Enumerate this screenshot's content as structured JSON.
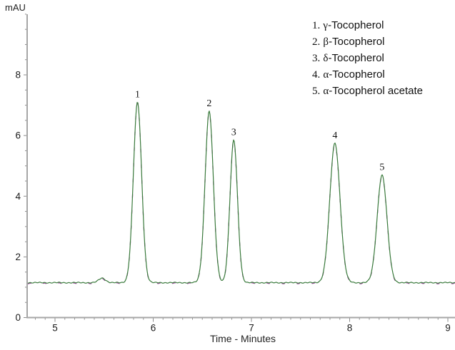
{
  "chart_data": {
    "type": "line",
    "title": "",
    "xlabel": "Time - Minutes",
    "ylabel": "mAU",
    "xlim": [
      4.72,
      9.07
    ],
    "ylim": [
      0,
      10
    ],
    "x_ticks": [
      5,
      6,
      7,
      8,
      9
    ],
    "y_ticks": [
      0,
      2,
      4,
      6,
      8
    ],
    "x_minor_tick_step": 0.1,
    "y_minor_tick_step": 0.5,
    "grid": false,
    "legend_position": "top-right",
    "baseline_mAU": 1.15,
    "noise_amplitude_mAU": 0.018,
    "trace_colors": {
      "primary_green": "#3a7a3c",
      "secondary_magenta": "#a352a3"
    },
    "axis_color": "#a6a6a6",
    "tick_color": "#8c8c8c",
    "text_color": "#1a1a1a",
    "peaks": [
      {
        "id": "1",
        "name": "γ-Tocopherol",
        "rt_min": 5.84,
        "apex_mAU": 7.1,
        "sigma_min": 0.042
      },
      {
        "id": "2",
        "name": "β-Tocopherol",
        "rt_min": 6.57,
        "apex_mAU": 6.8,
        "sigma_min": 0.042
      },
      {
        "id": "3",
        "name": "δ-Tocopherol",
        "rt_min": 6.82,
        "apex_mAU": 5.85,
        "sigma_min": 0.038
      },
      {
        "id": "4",
        "name": "α-Tocopherol",
        "rt_min": 7.85,
        "apex_mAU": 5.75,
        "sigma_min": 0.052
      },
      {
        "id": "5",
        "name": "α-Tocopherol acetate",
        "rt_min": 8.33,
        "apex_mAU": 4.7,
        "sigma_min": 0.05
      }
    ],
    "minor_features": [
      {
        "rt_min": 5.48,
        "apex_mAU": 1.3,
        "sigma_min": 0.035,
        "note": "small unlabeled baseline bump"
      }
    ]
  },
  "legend": {
    "items": [
      {
        "num": "1.",
        "greek": "γ",
        "rest": "-Tocopherol"
      },
      {
        "num": "2.",
        "greek": "β",
        "rest": "-Tocopherol"
      },
      {
        "num": "3.",
        "greek": "δ",
        "rest": "-Tocopherol"
      },
      {
        "num": "4.",
        "greek": "α",
        "rest": "-Tocopherol"
      },
      {
        "num": "5.",
        "greek": "α",
        "rest": "-Tocopherol acetate"
      }
    ]
  }
}
